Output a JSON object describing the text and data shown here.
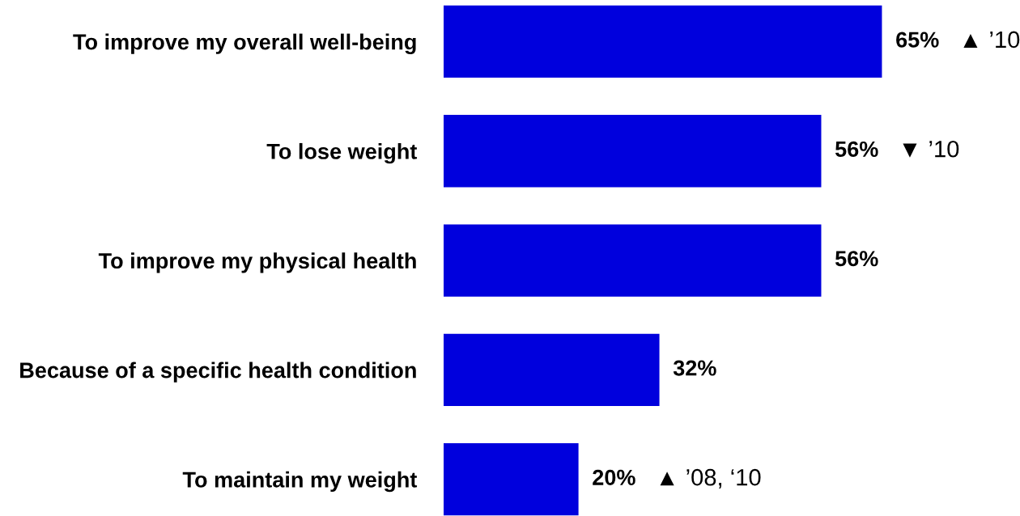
{
  "chart_data": {
    "type": "bar",
    "orientation": "horizontal",
    "categories": [
      "To improve my overall well-being",
      "To lose weight",
      "To improve my physical health",
      "Because of a specific health condition",
      "To maintain my weight"
    ],
    "values": [
      65,
      56,
      56,
      32,
      20
    ],
    "color": "#0000dd",
    "value_labels": [
      "65%",
      "56%",
      "56%",
      "32%",
      "20%"
    ],
    "annotations": [
      "▲ ’10",
      "▼ ’10",
      "▲ ’08, ‘10"
    ],
    "tick_labels": "y"
  }
}
